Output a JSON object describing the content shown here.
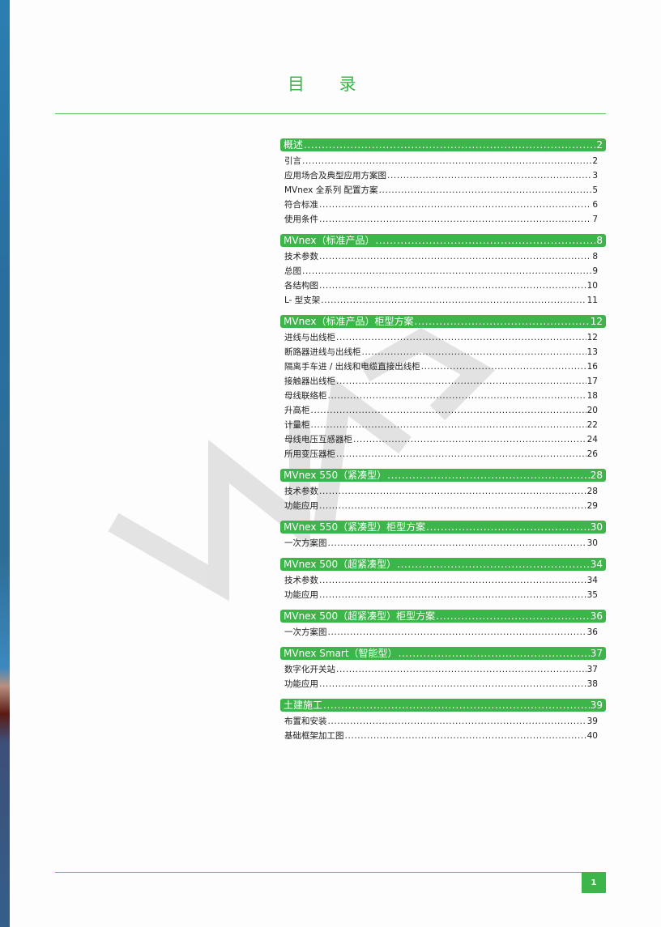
{
  "title": "目 录",
  "page_number": "1",
  "colors": {
    "accent": "#3db54a",
    "watermark": "#d9d9d9"
  },
  "sections": [
    {
      "title": "概述",
      "page": "2",
      "items": [
        {
          "label": "引言",
          "page": "2"
        },
        {
          "label": "应用场合及典型应用方案图",
          "page": "3"
        },
        {
          "label": "MVnex 全系列 配置方案",
          "page": "5"
        },
        {
          "label": "符合标准",
          "page": "6"
        },
        {
          "label": "使用条件",
          "page": "7"
        }
      ]
    },
    {
      "title": "MVnex（标准产品）",
      "page": "8",
      "items": [
        {
          "label": "技术参数",
          "page": "8"
        },
        {
          "label": "总图",
          "page": "9"
        },
        {
          "label": "各结构图",
          "page": "10"
        },
        {
          "label": "L- 型支架",
          "page": "11"
        }
      ]
    },
    {
      "title": "MVnex（标准产品）柜型方案",
      "page": "12",
      "items": [
        {
          "label": "进线与出线柜",
          "page": "12"
        },
        {
          "label": "断路器进线与出线柜",
          "page": "13"
        },
        {
          "label": "隔离手车进 / 出线和电缆直接出线柜",
          "page": "16"
        },
        {
          "label": "接触器出线柜",
          "page": "17"
        },
        {
          "label": "母线联络柜",
          "page": "18"
        },
        {
          "label": "升高柜",
          "page": "20"
        },
        {
          "label": "计量柜",
          "page": "22"
        },
        {
          "label": "母线电压互感器柜",
          "page": "24"
        },
        {
          "label": "所用变压器柜",
          "page": "26"
        }
      ]
    },
    {
      "title": "MVnex 550（紧凑型）",
      "page": "28",
      "items": [
        {
          "label": "技术参数",
          "page": "28"
        },
        {
          "label": "功能应用",
          "page": "29"
        }
      ]
    },
    {
      "title": "MVnex 550（紧凑型）柜型方案",
      "page": "30",
      "items": [
        {
          "label": "一次方案图",
          "page": "30"
        }
      ]
    },
    {
      "title": "MVnex 500（超紧凑型）",
      "page": "34",
      "items": [
        {
          "label": "技术参数",
          "page": "34"
        },
        {
          "label": "功能应用",
          "page": "35"
        }
      ]
    },
    {
      "title": "MVnex 500（超紧凑型）柜型方案",
      "page": "36",
      "items": [
        {
          "label": "一次方案图",
          "page": "36"
        }
      ]
    },
    {
      "title": "MVnex Smart（智能型）",
      "page": "37",
      "items": [
        {
          "label": "数字化开关站",
          "page": "37"
        },
        {
          "label": "功能应用",
          "page": "38"
        }
      ]
    },
    {
      "title": "土建施工",
      "page": "39",
      "items": [
        {
          "label": "布置和安装",
          "page": "39"
        },
        {
          "label": "基础框架加工图",
          "page": "40"
        }
      ]
    }
  ]
}
